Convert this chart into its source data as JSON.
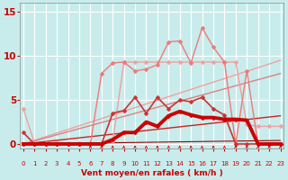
{
  "background_color": "#c8ecec",
  "grid_color": "#b0d8d8",
  "text_color": "#cc0000",
  "xlabel": "Vent moyen/en rafales ( km/h )",
  "xlim": [
    -0.3,
    23.3
  ],
  "ylim": [
    -0.5,
    16
  ],
  "yticks": [
    0,
    5,
    10,
    15
  ],
  "xticks": [
    0,
    1,
    2,
    3,
    4,
    5,
    6,
    7,
    8,
    9,
    10,
    11,
    12,
    13,
    14,
    15,
    16,
    17,
    18,
    19,
    20,
    21,
    22,
    23
  ],
  "series": [
    {
      "x": [
        0,
        23
      ],
      "y": [
        0.0,
        9.5
      ],
      "color": "#f0a0a0",
      "lw": 1.0,
      "marker": null,
      "ms": 0
    },
    {
      "x": [
        0,
        23
      ],
      "y": [
        0.0,
        8.0
      ],
      "color": "#e08080",
      "lw": 1.0,
      "marker": null,
      "ms": 0
    },
    {
      "x": [
        0,
        23
      ],
      "y": [
        0.0,
        3.2
      ],
      "color": "#cc2222",
      "lw": 1.0,
      "marker": null,
      "ms": 0
    },
    {
      "x": [
        0,
        23
      ],
      "y": [
        0.0,
        0.4
      ],
      "color": "#990000",
      "lw": 0.8,
      "marker": null,
      "ms": 0
    },
    {
      "x": [
        0,
        1,
        2,
        3,
        4,
        5,
        6,
        7,
        8,
        9,
        10,
        11,
        12,
        13,
        14,
        15,
        16,
        17,
        18,
        19,
        20,
        21,
        22,
        23
      ],
      "y": [
        4.0,
        0.1,
        0.1,
        0.1,
        0.1,
        0.1,
        0.1,
        0.1,
        0.3,
        9.3,
        9.3,
        9.3,
        9.3,
        9.3,
        9.3,
        9.3,
        9.3,
        9.3,
        9.3,
        9.3,
        2.2,
        2.0,
        2.0,
        2.0
      ],
      "color": "#f0a0a0",
      "lw": 1.0,
      "marker": "D",
      "ms": 2.5
    },
    {
      "x": [
        0,
        1,
        2,
        3,
        4,
        5,
        6,
        7,
        8,
        9,
        10,
        11,
        12,
        13,
        14,
        15,
        16,
        17,
        18,
        19,
        20,
        21,
        22,
        23
      ],
      "y": [
        0.0,
        0.0,
        0.0,
        0.0,
        0.0,
        0.0,
        0.0,
        8.0,
        9.2,
        9.3,
        8.3,
        8.5,
        9.0,
        11.6,
        11.7,
        9.2,
        13.2,
        11.0,
        9.3,
        0.0,
        8.3,
        0.0,
        0.0,
        0.0
      ],
      "color": "#f07878",
      "lw": 1.0,
      "marker": "D",
      "ms": 2.5
    },
    {
      "x": [
        0,
        1,
        2,
        3,
        4,
        5,
        6,
        7,
        8,
        9,
        10,
        11,
        12,
        13,
        14,
        15,
        16,
        17,
        18,
        19,
        20,
        21,
        22,
        23
      ],
      "y": [
        1.3,
        0.0,
        0.0,
        0.0,
        0.0,
        0.0,
        0.0,
        0.0,
        3.5,
        3.8,
        5.3,
        3.5,
        5.3,
        4.0,
        5.0,
        4.8,
        5.3,
        4.0,
        3.3,
        0.0,
        0.0,
        0.0,
        0.0,
        0.0
      ],
      "color": "#cc3333",
      "lw": 1.2,
      "marker": "D",
      "ms": 2.5
    },
    {
      "x": [
        0,
        1,
        2,
        3,
        4,
        5,
        6,
        7,
        8,
        9,
        10,
        11,
        12,
        13,
        14,
        15,
        16,
        17,
        18,
        19,
        20,
        21,
        22,
        23
      ],
      "y": [
        0.0,
        0.0,
        0.0,
        0.0,
        0.0,
        0.0,
        0.0,
        0.0,
        0.5,
        1.3,
        1.3,
        2.5,
        2.0,
        3.2,
        3.7,
        3.3,
        3.0,
        3.0,
        2.8,
        2.8,
        2.7,
        0.0,
        0.0,
        0.0
      ],
      "color": "#cc0000",
      "lw": 2.8,
      "marker": "D",
      "ms": 2.5
    }
  ],
  "arrow_ticks": [
    6,
    7,
    8,
    9,
    10,
    11,
    12,
    13,
    14,
    15,
    16,
    17,
    18,
    19,
    20,
    21,
    22,
    23
  ]
}
